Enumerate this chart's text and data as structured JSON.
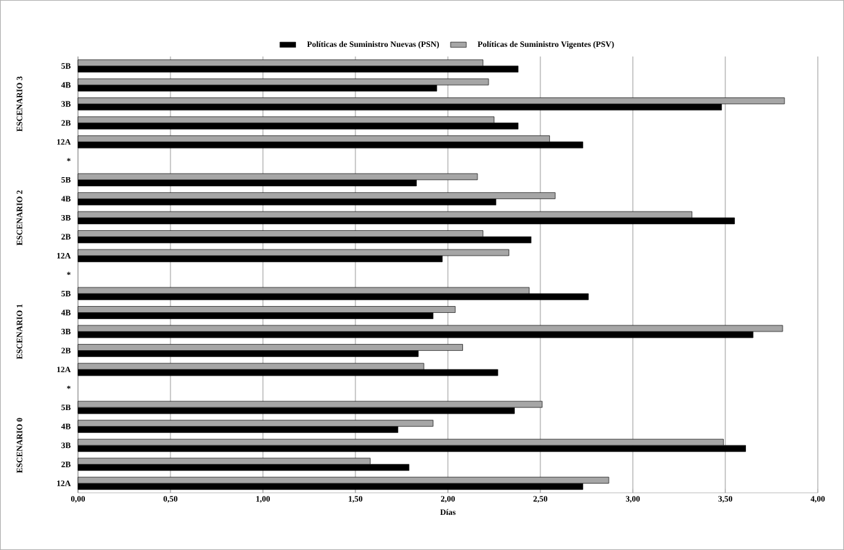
{
  "chart_data": {
    "type": "bar",
    "orientation": "horizontal",
    "xlabel": "Días",
    "categories": [
      "5B",
      "4B",
      "3B",
      "2B",
      "12A",
      "*",
      "5B",
      "4B",
      "3B",
      "2B",
      "12A",
      "*",
      "5B",
      "4B",
      "3B",
      "2B",
      "12A",
      "*",
      "5B",
      "4B",
      "3B",
      "2B",
      "12A"
    ],
    "series": [
      {
        "name": "Políticas de Suministro Nuevas (PSN)",
        "color": "#000000",
        "values": [
          2.38,
          1.94,
          3.48,
          2.38,
          2.73,
          null,
          1.83,
          2.26,
          3.55,
          2.45,
          1.97,
          null,
          2.76,
          1.92,
          3.65,
          1.84,
          2.27,
          null,
          2.36,
          1.73,
          3.61,
          1.79,
          2.73
        ]
      },
      {
        "name": "Políticas de Suministro Vigentes (PSV)",
        "color": "#a6a6a6",
        "values": [
          2.19,
          2.22,
          3.82,
          2.25,
          2.55,
          null,
          2.16,
          2.58,
          3.32,
          2.19,
          2.33,
          null,
          2.44,
          2.04,
          3.81,
          2.08,
          1.87,
          null,
          2.51,
          1.92,
          3.49,
          1.58,
          2.87
        ]
      }
    ],
    "annotations": [
      "ESCENARIO 3",
      "ESCENARIO 2",
      "ESCENARIO 1",
      "ESCENARIO 0"
    ],
    "xlim": [
      0,
      4
    ],
    "xticks": [
      {
        "value": 0,
        "label": "0,00"
      },
      {
        "value": 0.5,
        "label": "0,50"
      },
      {
        "value": 1,
        "label": "1,00"
      },
      {
        "value": 1.5,
        "label": "1,50"
      },
      {
        "value": 2,
        "label": "2,00"
      },
      {
        "value": 2.5,
        "label": "2,50"
      },
      {
        "value": 3,
        "label": "3,00"
      },
      {
        "value": 3.5,
        "label": "3,50"
      },
      {
        "value": 4,
        "label": "4,00"
      }
    ],
    "grid": "x",
    "legend": "top"
  }
}
